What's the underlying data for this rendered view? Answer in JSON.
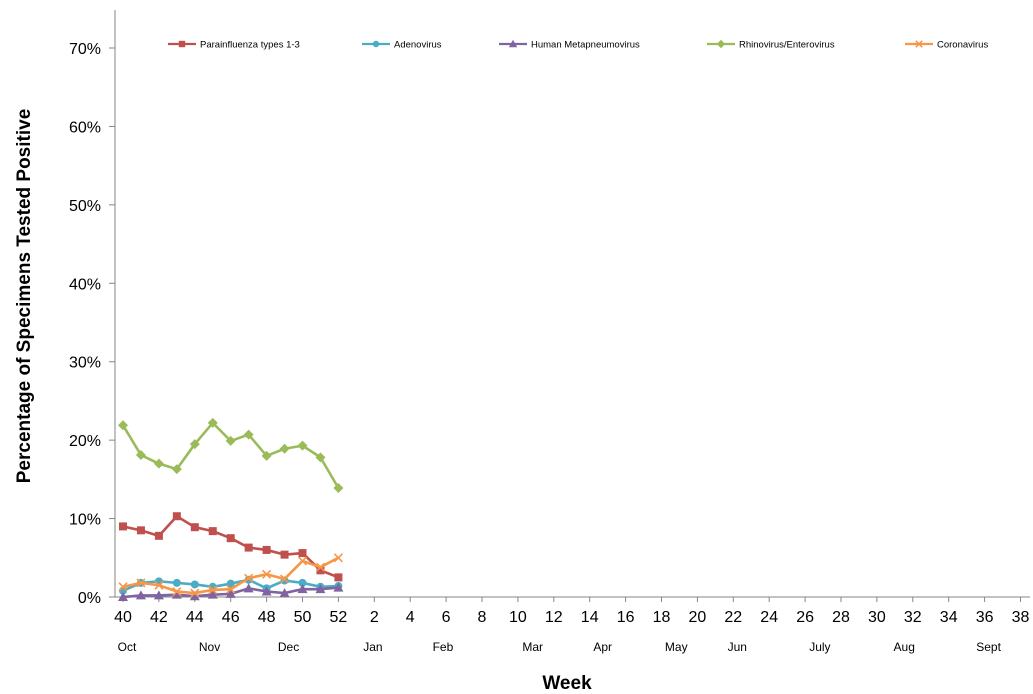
{
  "chart_data": {
    "type": "line",
    "xlabel": "Week",
    "ylabel": "Percentage of Specimens Tested Positive",
    "ylim": [
      0,
      70
    ],
    "yticks": [
      "0%",
      "10%",
      "20%",
      "30%",
      "40%",
      "50%",
      "60%",
      "70%"
    ],
    "x_tick_labels": [
      "40",
      "42",
      "44",
      "46",
      "48",
      "50",
      "52",
      "2",
      "4",
      "6",
      "8",
      "10",
      "12",
      "14",
      "16",
      "18",
      "20",
      "22",
      "24",
      "26",
      "28",
      "30",
      "32",
      "34",
      "36",
      "38"
    ],
    "month_labels": [
      "Oct",
      "Nov",
      "Dec",
      "Jan",
      "Feb",
      "Mar",
      "Apr",
      "May",
      "Jun",
      "July",
      "Aug",
      "Sept"
    ],
    "legend_position": "top",
    "grid": false,
    "x": [
      40,
      41,
      42,
      43,
      44,
      45,
      46,
      47,
      48,
      49,
      50,
      51,
      52
    ],
    "series": [
      {
        "name": "Parainfluenza types 1-3",
        "color": "#C0504D",
        "marker": "square",
        "values": [
          9.0,
          8.5,
          7.8,
          10.3,
          8.9,
          8.4,
          7.5,
          6.3,
          6.0,
          5.4,
          5.6,
          3.4,
          2.5
        ]
      },
      {
        "name": "Adenovirus",
        "color": "#4BACC6",
        "marker": "circle",
        "values": [
          0.8,
          1.8,
          2.0,
          1.8,
          1.6,
          1.3,
          1.7,
          2.2,
          1.1,
          2.1,
          1.8,
          1.3,
          1.4
        ]
      },
      {
        "name": "Human Metapneumovirus",
        "color": "#8064A2",
        "marker": "triangle",
        "values": [
          0.0,
          0.2,
          0.2,
          0.3,
          0.1,
          0.3,
          0.4,
          1.1,
          0.7,
          0.5,
          1.0,
          1.0,
          1.2
        ]
      },
      {
        "name": "Rhinovirus/Enterovirus",
        "color": "#9BBB59",
        "marker": "diamond",
        "values": [
          21.9,
          18.1,
          17.0,
          16.3,
          19.5,
          22.2,
          19.9,
          20.7,
          18.0,
          18.9,
          19.3,
          17.8,
          13.9
        ]
      },
      {
        "name": "Coronavirus",
        "color": "#F79646",
        "marker": "x",
        "values": [
          1.3,
          1.8,
          1.5,
          0.7,
          0.5,
          0.9,
          1.0,
          2.4,
          2.9,
          2.3,
          4.6,
          3.8,
          5.0
        ]
      }
    ]
  }
}
